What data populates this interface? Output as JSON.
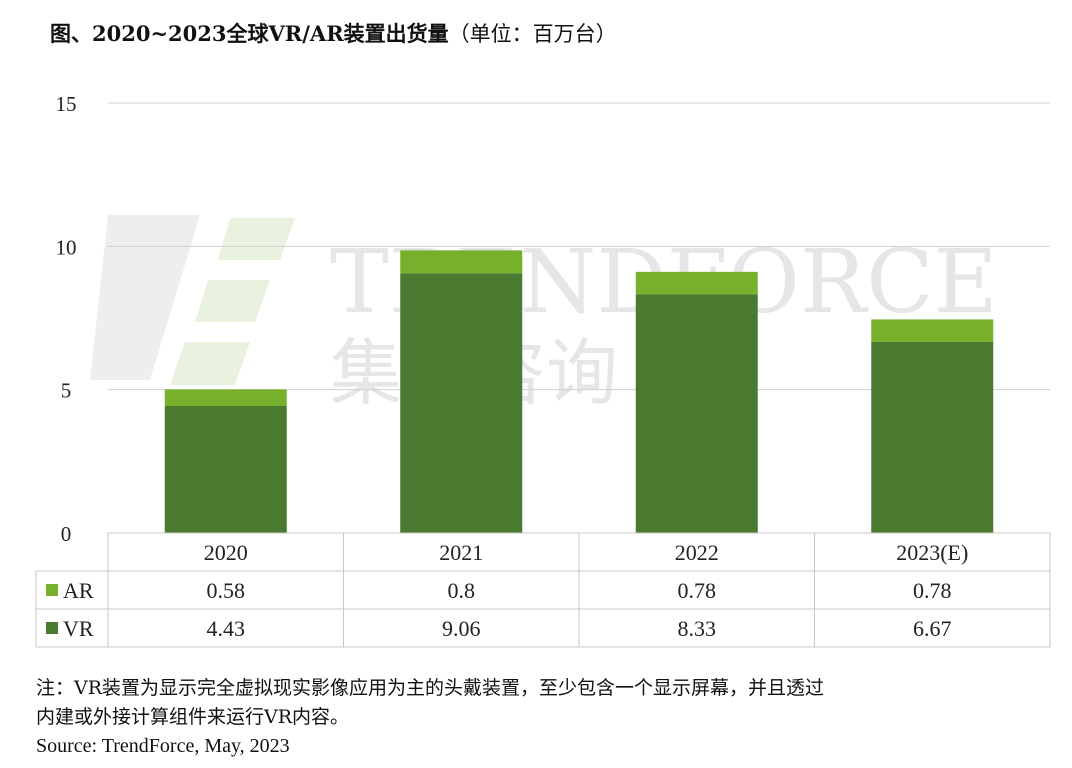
{
  "title": "图、2020~2023全球VR/AR装置出货量",
  "unit": "（单位：百万台）",
  "watermark": {
    "brand": "TRENDFORCE",
    "brand_cn": "集邦咨询"
  },
  "colors": {
    "ar": "#77b02a",
    "vr": "#4a7a30",
    "grid": "#d0d0d0",
    "table_border": "#c8c8c8"
  },
  "chart_data": {
    "type": "bar",
    "stacked": true,
    "categories": [
      "2020",
      "2021",
      "2022",
      "2023(E)"
    ],
    "series": [
      {
        "name": "VR",
        "values": [
          4.43,
          9.06,
          8.33,
          6.67
        ]
      },
      {
        "name": "AR",
        "values": [
          0.58,
          0.8,
          0.78,
          0.78
        ]
      }
    ],
    "ylim": [
      0,
      15
    ],
    "yticks": [
      0,
      5,
      10,
      15
    ],
    "grid": true,
    "legend": "data-table"
  },
  "table": {
    "rows": [
      {
        "label": "AR",
        "values": [
          "0.58",
          "0.8",
          "0.78",
          "0.78"
        ]
      },
      {
        "label": "VR",
        "values": [
          "4.43",
          "9.06",
          "8.33",
          "6.67"
        ]
      }
    ]
  },
  "notes": {
    "line1": "注：VR装置为显示完全虚拟现实影像应用为主的头戴装置，至少包含一个显示屏幕，并且透过",
    "line2": "内建或外接计算组件来运行VR内容。",
    "source": "Source: TrendForce, May, 2023"
  }
}
